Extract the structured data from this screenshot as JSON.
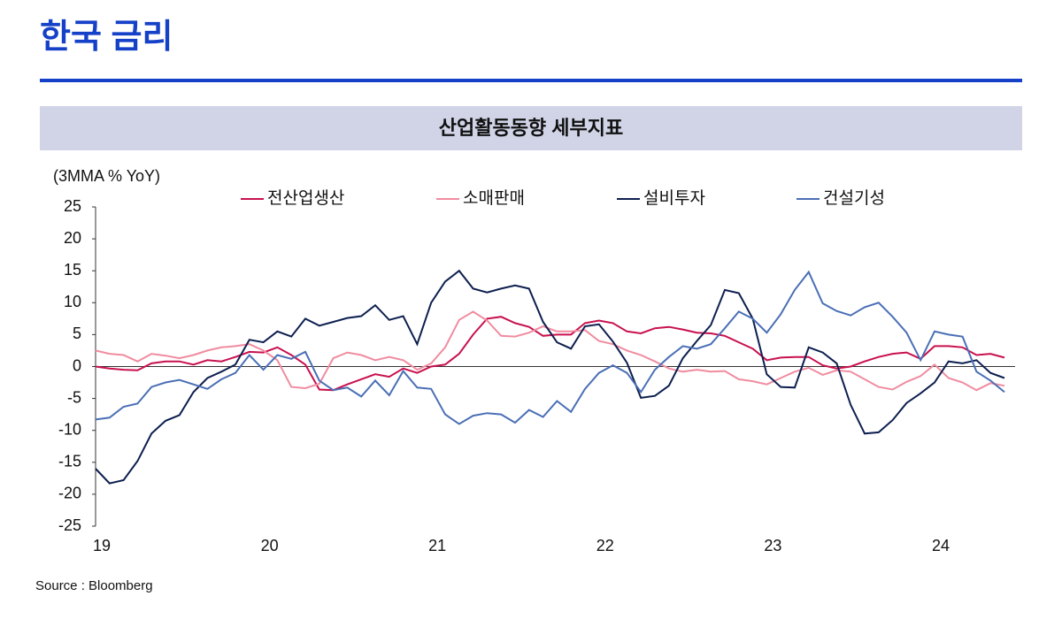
{
  "header": {
    "title": "한국 금리"
  },
  "chart_data": {
    "type": "line",
    "title": "산업활동동향 세부지표",
    "y_label": "(3MMA % YoY)",
    "categories": [
      "19",
      null,
      null,
      null,
      null,
      null,
      null,
      null,
      null,
      null,
      null,
      null,
      "20",
      null,
      null,
      null,
      null,
      null,
      null,
      null,
      null,
      null,
      null,
      null,
      "21",
      null,
      null,
      null,
      null,
      null,
      null,
      null,
      null,
      null,
      null,
      null,
      "22",
      null,
      null,
      null,
      null,
      null,
      null,
      null,
      null,
      null,
      null,
      null,
      "23",
      null,
      null,
      null,
      null,
      null,
      null,
      null,
      null,
      null,
      null,
      null,
      "24",
      null,
      null,
      null,
      null,
      null
    ],
    "series": [
      {
        "name": "전산업생산",
        "color": "#c8104e",
        "values": [
          0,
          -0.3,
          -0.5,
          -0.6,
          0.5,
          0.8,
          0.8,
          0.3,
          1,
          0.8,
          1.5,
          2.3,
          2.2,
          3,
          1.8,
          0.3,
          -3.6,
          -3.7,
          -2.8,
          -2,
          -1.2,
          -1.6,
          -0.3,
          -1,
          0,
          0.3,
          2,
          5,
          7.5,
          7.8,
          6.8,
          6.2,
          4.8,
          5,
          5,
          6.8,
          7.2,
          6.8,
          5.5,
          5.2,
          6,
          6.2,
          5.8,
          5.3,
          5.2,
          4.8,
          3.8,
          2.8,
          1,
          1.4,
          1.5,
          1.5,
          0.2,
          -0.3,
          0,
          0.8,
          1.5,
          2,
          2.2,
          1.2,
          3.2,
          3.2,
          3,
          1.8,
          2,
          1.4
        ]
      },
      {
        "name": "소매판매",
        "color": "#f08ca0",
        "values": [
          2.5,
          2,
          1.8,
          0.8,
          2,
          1.7,
          1.3,
          1.8,
          2.5,
          3,
          3.2,
          3.5,
          2.5,
          1,
          -3.2,
          -3.4,
          -2.7,
          1.3,
          2.2,
          1.8,
          1,
          1.5,
          1,
          -0.5,
          0.5,
          3,
          7.3,
          8.6,
          7.2,
          4.8,
          4.7,
          5.3,
          6.3,
          5.5,
          5.5,
          5.7,
          4,
          3.5,
          2.5,
          1.8,
          0.8,
          -0.3,
          -0.8,
          -0.5,
          -0.8,
          -0.7,
          -2,
          -2.3,
          -2.8,
          -1.8,
          -0.8,
          -0.2,
          -1.3,
          -0.6,
          -0.8,
          -2,
          -3.2,
          -3.6,
          -2.4,
          -1.5,
          0.3,
          -1.8,
          -2.5,
          -3.7,
          -2.6,
          -3
        ]
      },
      {
        "name": "설비투자",
        "color": "#0d1f4f",
        "values": [
          -16,
          -18.3,
          -17.8,
          -14.8,
          -10.5,
          -8.5,
          -7.6,
          -4,
          -1.8,
          -0.8,
          0.3,
          4.2,
          3.8,
          5.5,
          4.7,
          7.5,
          6.4,
          7,
          7.6,
          7.9,
          9.6,
          7.3,
          7.9,
          3.5,
          10,
          13.3,
          15,
          12.2,
          11.6,
          12.2,
          12.7,
          12.2,
          7,
          3.8,
          2.8,
          6.3,
          6.6,
          3.9,
          0.6,
          -4.9,
          -4.6,
          -3,
          1.3,
          4,
          6.5,
          12,
          11.5,
          7.5,
          -1.2,
          -3.2,
          -3.3,
          3,
          2.2,
          0.5,
          -6,
          -10.5,
          -10.3,
          -8.4,
          -5.7,
          -4.2,
          -2.5,
          0.8,
          0.5,
          1,
          -1,
          -1.8
        ]
      },
      {
        "name": "건설기성",
        "color": "#4a6fb5",
        "values": [
          -8.3,
          -8,
          -6.3,
          -5.8,
          -3.2,
          -2.5,
          -2.1,
          -2.8,
          -3.5,
          -2,
          -1,
          1.8,
          -0.5,
          1.8,
          1.2,
          2.3,
          -2.2,
          -3.7,
          -3.3,
          -4.7,
          -2.2,
          -4.5,
          -0.7,
          -3.3,
          -3.5,
          -7.5,
          -9,
          -7.7,
          -7.3,
          -7.5,
          -8.8,
          -6.8,
          -7.9,
          -5.4,
          -7.1,
          -3.5,
          -1,
          0.2,
          -1,
          -4,
          -0.5,
          1.5,
          3.2,
          2.8,
          3.5,
          6,
          8.6,
          7.5,
          5.3,
          8.2,
          12,
          14.8,
          9.9,
          8.7,
          8,
          9.3,
          10,
          7.8,
          5.3,
          1,
          5.5,
          5,
          4.7,
          -0.8,
          -2.2,
          -4
        ]
      }
    ],
    "ylim": [
      -25,
      25
    ],
    "yticks": [
      -25,
      -20,
      -15,
      -10,
      -5,
      0,
      5,
      10,
      15,
      20,
      25
    ]
  },
  "footer": {
    "source": "Source : Bloomberg"
  }
}
